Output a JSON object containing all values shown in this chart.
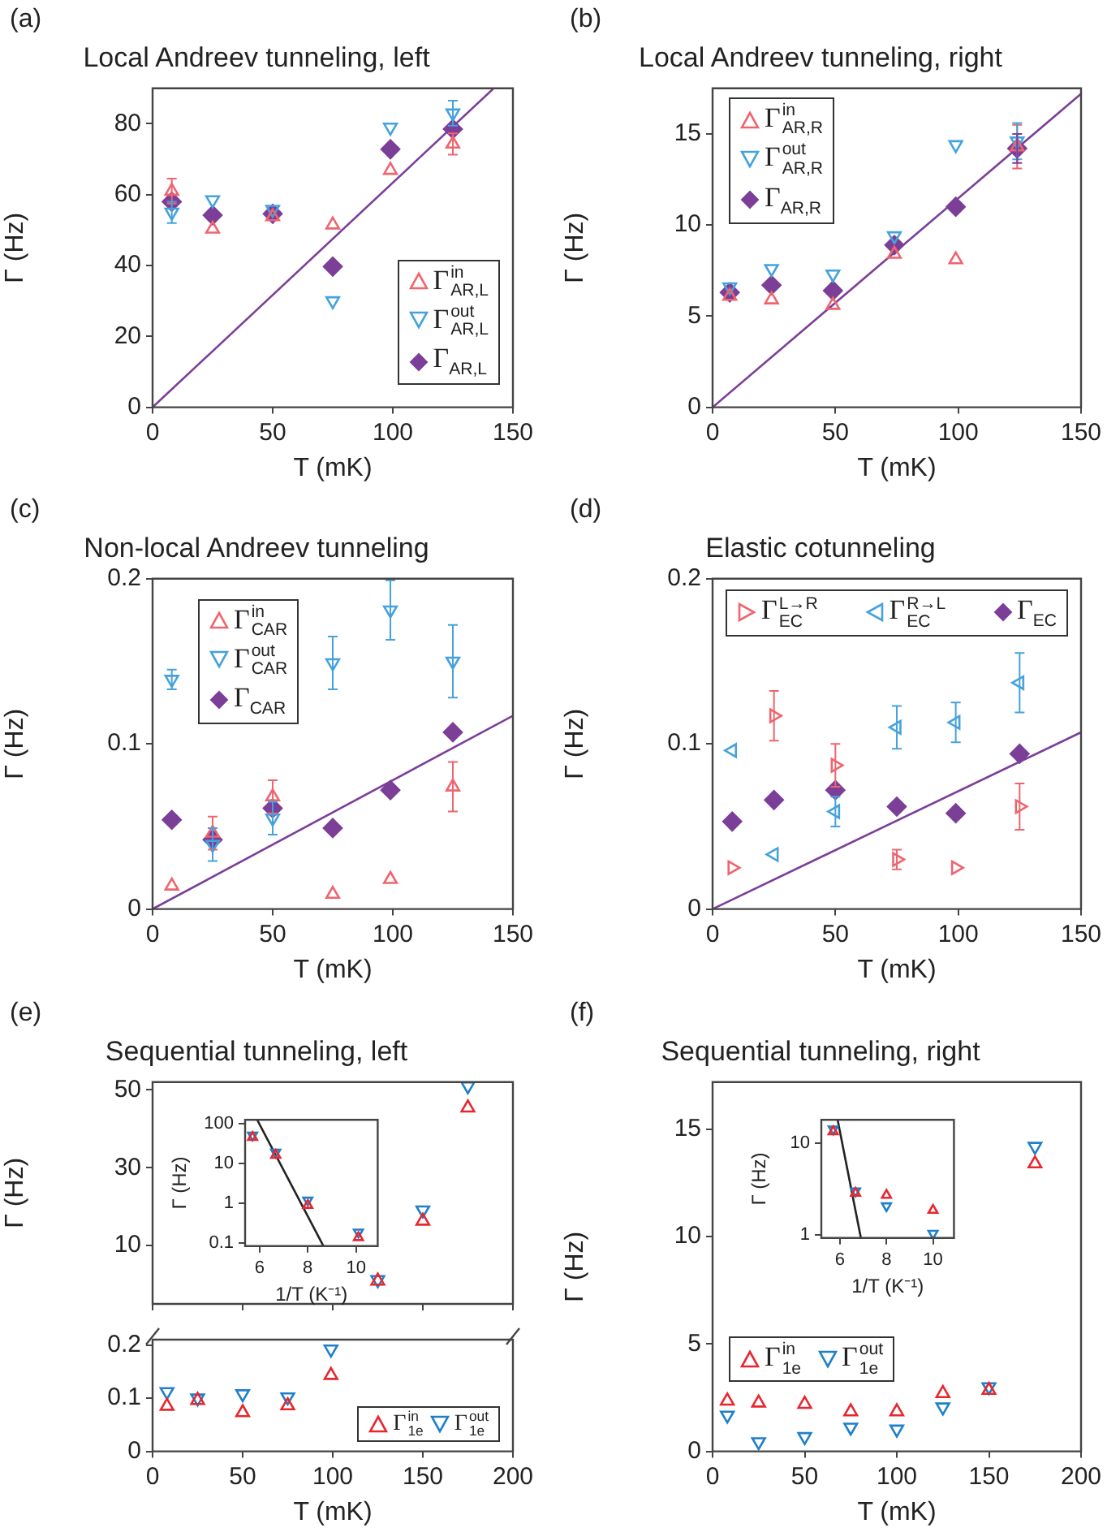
{
  "chart_data": [
    {
      "type": "scatter",
      "title": "Local Andreev tunneling, left",
      "xlabel": "T (mK)",
      "ylabel": "Γ (Hz)",
      "annotations": [
        "(a)"
      ],
      "xlim": [
        0,
        150
      ],
      "xticks": [
        0,
        50,
        100,
        150
      ],
      "ylim": [
        0,
        90
      ],
      "yticks": [
        0,
        20,
        40,
        60,
        80
      ],
      "grid": false,
      "legend": "bottom right",
      "series": [
        {
          "name": "Γ$^{in}$$_{AR,L}$",
          "color": "#f0646e",
          "marker": "triangle",
          "x": [
            8,
            25,
            50,
            75,
            99,
            125
          ],
          "values": [
            61,
            50.3,
            53.8,
            51.5,
            66.9,
            74.3
          ],
          "errors": [
            3.5,
            null,
            null,
            null,
            null,
            3
          ]
        },
        {
          "name": "Γ$^{out}$$_{AR,L}$",
          "color": "#45a2dc",
          "marker": "triangle-down",
          "x": [
            8,
            25,
            50,
            75,
            99,
            125
          ],
          "values": [
            55,
            58.5,
            55.8,
            30,
            79,
            83
          ],
          "errors": [
            3,
            null,
            null,
            null,
            null,
            3.5
          ]
        },
        {
          "name": "Γ$_{AR,L}$",
          "color": "#7b3f98",
          "marker": "diamond",
          "x": [
            8,
            25,
            50,
            75,
            99,
            125
          ],
          "values": [
            58,
            54.2,
            54.6,
            39.7,
            72.8,
            78.5
          ]
        },
        {
          "type": "line",
          "color": "#7b3f98",
          "marker": "none",
          "x": [
            0,
            142
          ],
          "values": [
            0,
            90
          ]
        }
      ]
    },
    {
      "type": "scatter",
      "title": "Local Andreev tunneling, right",
      "xlabel": "T (mK)",
      "ylabel": "Γ (Hz)",
      "annotations": [
        "(b)"
      ],
      "xlim": [
        0,
        150
      ],
      "xticks": [
        0,
        50,
        100,
        150
      ],
      "ylim": [
        0,
        17.5
      ],
      "yticks": [
        0,
        5,
        10,
        15
      ],
      "grid": false,
      "legend": "top left",
      "series": [
        {
          "name": "Γ$^{in}$$_{AR,R}$",
          "color": "#f0646e",
          "marker": "triangle",
          "x": [
            7,
            24,
            49,
            74,
            99,
            124
          ],
          "values": [
            6.1,
            5.9,
            5.6,
            8.4,
            8.1,
            14.3
          ],
          "errors": [
            null,
            null,
            null,
            null,
            null,
            1.2
          ]
        },
        {
          "name": "Γ$^{out}$$_{AR,R}$",
          "color": "#45a2dc",
          "marker": "triangle-down",
          "x": [
            7,
            24,
            49,
            74,
            99,
            124
          ],
          "values": [
            6.6,
            7.6,
            7.3,
            9.4,
            14.4,
            14.6
          ],
          "errors": [
            null,
            null,
            null,
            null,
            null,
            1
          ]
        },
        {
          "name": "Γ$_{AR,R}$",
          "color": "#7b3f98",
          "marker": "diamond",
          "x": [
            7,
            24,
            49,
            74,
            99,
            124
          ],
          "values": [
            6.3,
            6.7,
            6.4,
            8.9,
            11,
            14.2
          ],
          "errors": [
            null,
            null,
            null,
            null,
            null,
            0.8
          ]
        },
        {
          "type": "line",
          "color": "#7b3f98",
          "marker": "none",
          "x": [
            0,
            150
          ],
          "values": [
            0,
            17.2
          ]
        }
      ]
    },
    {
      "type": "scatter",
      "title": "Non-local Andreev tunneling",
      "xlabel": "T (mK)",
      "ylabel": "Γ (Hz)",
      "annotations": [
        "(c)"
      ],
      "xlim": [
        0,
        150
      ],
      "xticks": [
        0,
        50,
        100,
        150
      ],
      "ylim": [
        0,
        0.2
      ],
      "yticks": [
        0,
        0.1,
        0.2
      ],
      "grid": false,
      "legend": "top left",
      "series": [
        {
          "name": "Γ$^{in}$$_{CAR}$",
          "color": "#f0646e",
          "marker": "triangle",
          "x": [
            8,
            25,
            50,
            75,
            99,
            125
          ],
          "values": [
            0.014,
            0.046,
            0.068,
            0.009,
            0.018,
            0.074
          ],
          "errors": [
            null,
            0.01,
            0.01,
            null,
            null,
            0.015
          ]
        },
        {
          "name": "Γ$^{out}$$_{CAR}$",
          "color": "#45a2dc",
          "marker": "triangle-down",
          "x": [
            8,
            25,
            50,
            75,
            99,
            125
          ],
          "values": [
            0.139,
            0.039,
            0.055,
            0.149,
            0.181,
            0.15
          ],
          "errors": [
            0.006,
            0.01,
            0.01,
            0.016,
            0.018,
            0.022
          ]
        },
        {
          "name": "Γ$_{CAR}$",
          "color": "#7b3f98",
          "marker": "diamond",
          "x": [
            8,
            25,
            50,
            75,
            99,
            125
          ],
          "values": [
            0.054,
            0.042,
            0.061,
            0.049,
            0.072,
            0.107
          ]
        },
        {
          "type": "line",
          "color": "#7b3f98",
          "marker": "none",
          "x": [
            0,
            150
          ],
          "values": [
            0,
            0.117
          ]
        }
      ]
    },
    {
      "type": "scatter",
      "title": "Elastic cotunneling",
      "xlabel": "T (mK)",
      "ylabel": "Γ (Hz)",
      "annotations": [
        "(d)"
      ],
      "xlim": [
        0,
        150
      ],
      "xticks": [
        0,
        50,
        100,
        150
      ],
      "ylim": [
        0,
        0.2
      ],
      "yticks": [
        0,
        0.1,
        0.2
      ],
      "grid": false,
      "legend": "top",
      "series": [
        {
          "name": "Γ$^{L→R}$$_{EC}$",
          "color": "#f0646e",
          "marker": "triangle-right",
          "x": [
            8,
            25,
            50,
            75,
            99,
            125
          ],
          "values": [
            0.025,
            0.117,
            0.087,
            0.03,
            0.025,
            0.062
          ],
          "errors": [
            null,
            0.015,
            0.013,
            0.006,
            null,
            0.014
          ]
        },
        {
          "name": "Γ$^{R→L}$$_{EC}$",
          "color": "#45a2dc",
          "marker": "triangle-left",
          "x": [
            8,
            25,
            50,
            75,
            99,
            125
          ],
          "values": [
            0.096,
            0.033,
            0.059,
            0.11,
            0.113,
            0.137
          ],
          "errors": [
            null,
            null,
            0.009,
            0.013,
            0.012,
            0.018
          ]
        },
        {
          "name": "Γ$_{EC}$",
          "color": "#7b3f98",
          "marker": "diamond",
          "x": [
            8,
            25,
            50,
            75,
            99,
            125
          ],
          "values": [
            0.053,
            0.066,
            0.072,
            0.062,
            0.058,
            0.094
          ]
        },
        {
          "type": "line",
          "color": "#7b3f98",
          "marker": "none",
          "x": [
            0,
            150
          ],
          "values": [
            0,
            0.107
          ]
        }
      ]
    },
    {
      "type": "scatter",
      "title": "Sequential tunneling, left",
      "ylabel": "Γ (Hz)",
      "annotations": [
        "(e)"
      ],
      "xlim": [
        0,
        200
      ],
      "xticks": [
        0,
        50,
        100,
        150,
        200
      ],
      "ylim": [
        -5,
        52
      ],
      "yticks": [
        10,
        30,
        50
      ],
      "tick_labels": "y",
      "grid": false,
      "series": [
        {
          "color": "#e8262e",
          "marker": "triangle",
          "x": [
            125,
            150,
            175
          ],
          "values": [
            0.9,
            16.3,
            45.4
          ]
        },
        {
          "color": "#1f80c8",
          "marker": "triangle-down",
          "x": [
            125,
            150,
            175
          ],
          "values": [
            1.2,
            19.1,
            51
          ]
        }
      ]
    },
    {
      "type": "scatter",
      "xlabel": "1/T (K⁻¹)",
      "ylabel": "Γ (Hz)",
      "xlim": [
        5.4,
        10.9
      ],
      "xticks": [
        6,
        8,
        10
      ],
      "ylim": [
        0.085,
        125
      ],
      "yticks": [
        0.1,
        1,
        10,
        100
      ],
      "log": "y",
      "grid": false,
      "series": [
        {
          "color": "#e8262e",
          "marker": "triangle",
          "x": [
            5.71,
            6.67,
            8,
            10.1
          ],
          "values": [
            45.4,
            16.3,
            0.9,
            0.14
          ]
        },
        {
          "color": "#1f80c8",
          "marker": "triangle-down",
          "x": [
            5.71,
            6.67,
            8,
            10.1
          ],
          "values": [
            51,
            19.1,
            1.2,
            0.19
          ]
        },
        {
          "type": "line",
          "color": "#222222",
          "marker": "none",
          "x": [
            5.9,
            8.65
          ],
          "values": [
            125,
            0.085
          ]
        }
      ]
    },
    {
      "type": "scatter",
      "xlabel": "T (mK)",
      "xlim": [
        0,
        200
      ],
      "xticks": [
        0,
        50,
        100,
        150,
        200
      ],
      "ylim": [
        0,
        0.21
      ],
      "yticks": [
        0,
        0.1,
        0.2
      ],
      "grid": false,
      "legend": "bottom right",
      "series": [
        {
          "name": "Γ$^{in}$$_{1e}$",
          "color": "#e8262e",
          "marker": "triangle",
          "x": [
            8,
            25,
            50,
            75,
            99
          ],
          "values": [
            0.085,
            0.096,
            0.073,
            0.086,
            0.143
          ]
        },
        {
          "name": "Γ$^{out}$$_{1e}$",
          "color": "#1f80c8",
          "marker": "triangle-down",
          "x": [
            8,
            25,
            50,
            75,
            99
          ],
          "values": [
            0.112,
            0.1,
            0.108,
            0.102,
            0.192
          ]
        }
      ]
    },
    {
      "type": "scatter",
      "title": "Sequential tunneling, right",
      "xlabel": "T (mK)",
      "ylabel": "Γ (Hz)",
      "annotations": [
        "(f)"
      ],
      "xlim": [
        0,
        200
      ],
      "xticks": [
        0,
        50,
        100,
        150,
        200
      ],
      "ylim": [
        0,
        17.2
      ],
      "yticks": [
        0,
        5,
        10,
        15
      ],
      "grid": false,
      "legend": "bottom left",
      "series": [
        {
          "name": "Γ$^{in}$$_{1e}$",
          "color": "#e8262e",
          "marker": "triangle",
          "x": [
            8,
            25,
            50,
            75,
            100,
            125,
            150,
            175
          ],
          "values": [
            2.35,
            2.26,
            2.2,
            1.85,
            1.85,
            2.7,
            2.85,
            13.4
          ]
        },
        {
          "name": "Γ$^{out}$$_{1e}$",
          "color": "#1f80c8",
          "marker": "triangle-down",
          "x": [
            8,
            25,
            50,
            75,
            100,
            125,
            150,
            175
          ],
          "values": [
            1.68,
            0.44,
            0.68,
            1.12,
            1.03,
            2.06,
            3,
            14.2
          ]
        }
      ]
    },
    {
      "type": "scatter",
      "xlabel": "1/T (K⁻¹)",
      "ylabel": "Γ (Hz)",
      "xlim": [
        5.2,
        10.9
      ],
      "xticks": [
        6,
        8,
        10
      ],
      "ylim": [
        0.92,
        18
      ],
      "yticks": [
        1,
        10
      ],
      "log": "y",
      "grid": false,
      "series": [
        {
          "color": "#e8262e",
          "marker": "triangle",
          "x": [
            5.71,
            6.67,
            8,
            10
          ],
          "values": [
            13.4,
            2.85,
            2.7,
            1.85
          ]
        },
        {
          "color": "#1f80c8",
          "marker": "triangle-down",
          "x": [
            5.71,
            6.67,
            8,
            10
          ],
          "values": [
            14.2,
            3,
            2.06,
            1.03
          ]
        },
        {
          "type": "line",
          "color": "#222222",
          "marker": "none",
          "x": [
            5.9,
            6.9
          ],
          "values": [
            18,
            0.92
          ]
        }
      ]
    }
  ]
}
